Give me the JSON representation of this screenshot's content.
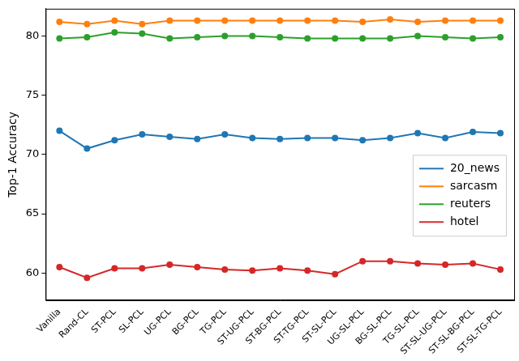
{
  "chart_data": {
    "type": "line",
    "y_label": "Top-1 Accuracy",
    "categories": [
      "Vanilla",
      "Rand-CL",
      "ST-PCL",
      "SL-PCL",
      "UG-PCL",
      "BG-PCL",
      "TG-PCL",
      "ST-UG-PCL",
      "ST-BG-PCL",
      "ST-TG-PCL",
      "ST-SL-PCL",
      "UG-SL-PCL",
      "BG-SL-PCL",
      "TG-SL-PCL",
      "ST-SL-UG-PCL",
      "ST-SL-BG-PCL",
      "ST-SL-TG-PCL"
    ],
    "series": [
      {
        "name": "20_news",
        "color": "#1f77b4",
        "values": [
          72.0,
          70.5,
          71.2,
          71.7,
          71.5,
          71.3,
          71.7,
          71.4,
          71.3,
          71.4,
          71.4,
          71.2,
          71.4,
          71.8,
          71.4,
          71.9,
          71.8
        ]
      },
      {
        "name": "sarcasm",
        "color": "#ff7f0e",
        "values": [
          81.2,
          81.0,
          81.3,
          81.0,
          81.3,
          81.3,
          81.3,
          81.3,
          81.3,
          81.3,
          81.3,
          81.2,
          81.4,
          81.2,
          81.3,
          81.3,
          81.3
        ]
      },
      {
        "name": "reuters",
        "color": "#2ca02c",
        "values": [
          79.8,
          79.9,
          80.3,
          80.2,
          79.8,
          79.9,
          80.0,
          80.0,
          79.9,
          79.8,
          79.8,
          79.8,
          79.8,
          80.0,
          79.9,
          79.8,
          79.9
        ]
      },
      {
        "name": "hotel",
        "color": "#d62728",
        "values": [
          60.5,
          59.6,
          60.4,
          60.4,
          60.7,
          60.5,
          60.3,
          60.2,
          60.4,
          60.2,
          59.9,
          61.0,
          61.0,
          60.8,
          60.7,
          60.8,
          60.3
        ]
      }
    ],
    "marker": "circle",
    "ylim": [
      57.7,
      82.3
    ],
    "yticks": [
      60,
      65,
      70,
      75,
      80
    ],
    "grid": false,
    "legend": "right"
  }
}
